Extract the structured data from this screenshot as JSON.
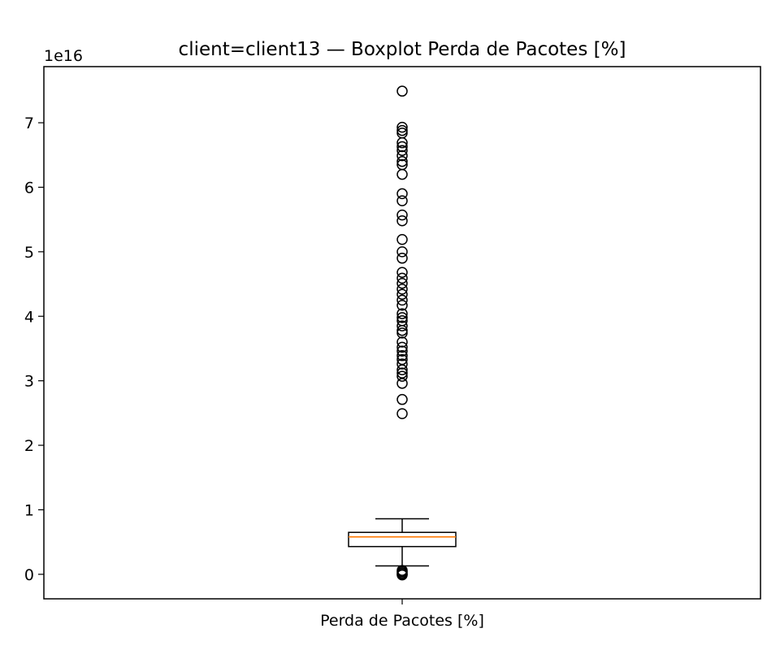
{
  "chart_data": {
    "type": "boxplot",
    "title": "client=client13 — Boxplot Perda de Pacotes [%]",
    "xlabel": "",
    "ylabel": "",
    "categories": [
      "Perda de Pacotes [%]"
    ],
    "y_offset_label": "1e16",
    "y_scale": 1e+16,
    "ylim": [
      -0.38,
      7.87
    ],
    "yticks": [
      0,
      1,
      2,
      3,
      4,
      5,
      6,
      7
    ],
    "grid": false,
    "box": {
      "whisker_low": 0.13,
      "q1": 0.43,
      "median": 0.58,
      "q3": 0.65,
      "whisker_high": 0.86
    },
    "outliers": [
      7.49,
      6.93,
      6.88,
      6.84,
      6.69,
      6.63,
      6.57,
      6.49,
      6.4,
      6.35,
      6.2,
      5.9,
      5.79,
      5.57,
      5.48,
      5.19,
      5.0,
      4.9,
      4.68,
      4.59,
      4.51,
      4.42,
      4.34,
      4.25,
      4.17,
      4.04,
      3.98,
      3.93,
      3.85,
      3.78,
      3.74,
      3.6,
      3.52,
      3.46,
      3.39,
      3.33,
      3.26,
      3.17,
      3.12,
      3.07,
      2.96,
      2.71,
      2.49,
      0.06,
      0.04,
      0.02,
      0.0,
      -0.01
    ],
    "colors": {
      "box": "#000000",
      "median": "#ff7f0e",
      "outlier": "#000000"
    }
  }
}
